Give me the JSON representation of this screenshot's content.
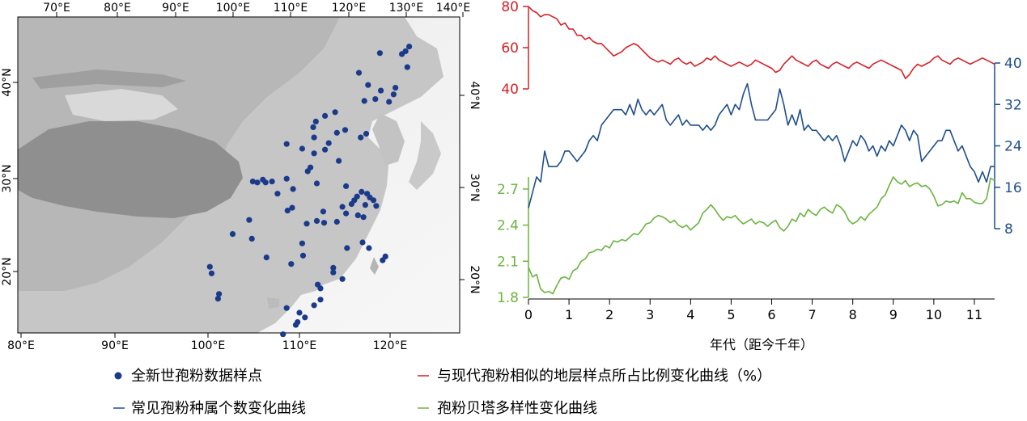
{
  "colors": {
    "red": "#d62027",
    "blue": "#1f4e8c",
    "green": "#6ab43e",
    "dot": "#1b3a8a",
    "frame": "#000000"
  },
  "map": {
    "top_lon_ticks": [
      "70°E",
      "80°E",
      "90°E",
      "100°E",
      "110°E",
      "120°E",
      "130°E",
      "140°E"
    ],
    "bottom_lon_ticks": [
      "80°E",
      "90°E",
      "100°E",
      "110°E",
      "120°E"
    ],
    "left_lat_ticks": [
      "20°N",
      "30°N",
      "40°N"
    ],
    "right_lat_ticks": [
      "20°N",
      "30°N",
      "40°N"
    ],
    "sites": [
      [
        122.0,
        44.0
      ],
      [
        121.6,
        43.5
      ],
      [
        121.2,
        43.2
      ],
      [
        118.8,
        43.3
      ],
      [
        121.8,
        41.8
      ],
      [
        116.5,
        41.2
      ],
      [
        117.5,
        39.9
      ],
      [
        120.5,
        39.6
      ],
      [
        118.9,
        39.3
      ],
      [
        120.3,
        38.9
      ],
      [
        118.3,
        38.4
      ],
      [
        117.1,
        38.2
      ],
      [
        119.8,
        38.1
      ],
      [
        113.9,
        37.0
      ],
      [
        112.8,
        36.6
      ],
      [
        111.8,
        36.0
      ],
      [
        111.5,
        35.4
      ],
      [
        115.0,
        35.1
      ],
      [
        114.1,
        34.8
      ],
      [
        117.3,
        34.7
      ],
      [
        116.7,
        34.3
      ],
      [
        111.6,
        34.3
      ],
      [
        113.2,
        33.7
      ],
      [
        108.6,
        33.6
      ],
      [
        110.3,
        33.1
      ],
      [
        112.8,
        33.0
      ],
      [
        111.6,
        32.6
      ],
      [
        114.3,
        31.8
      ],
      [
        111.2,
        31.1
      ],
      [
        110.9,
        30.7
      ],
      [
        108.6,
        29.9
      ],
      [
        106.0,
        29.8
      ],
      [
        107.0,
        29.6
      ],
      [
        104.9,
        29.6
      ],
      [
        106.3,
        29.5
      ],
      [
        105.4,
        29.5
      ],
      [
        111.9,
        29.4
      ],
      [
        115.1,
        29.1
      ],
      [
        109.3,
        28.8
      ],
      [
        107.6,
        28.3
      ],
      [
        116.8,
        28.5
      ],
      [
        117.4,
        28.3
      ],
      [
        116.3,
        28.0
      ],
      [
        117.7,
        27.9
      ],
      [
        118.1,
        27.6
      ],
      [
        116.0,
        27.6
      ],
      [
        115.7,
        27.2
      ],
      [
        117.2,
        27.1
      ],
      [
        118.4,
        27.0
      ],
      [
        114.7,
        26.9
      ],
      [
        109.2,
        26.8
      ],
      [
        108.7,
        26.5
      ],
      [
        112.6,
        26.4
      ],
      [
        115.1,
        26.2
      ],
      [
        116.4,
        26.0
      ],
      [
        117.0,
        25.8
      ],
      [
        104.5,
        25.5
      ],
      [
        111.9,
        25.4
      ],
      [
        114.1,
        25.3
      ],
      [
        112.7,
        25.2
      ],
      [
        110.8,
        25.1
      ],
      [
        102.7,
        24.0
      ],
      [
        104.8,
        23.5
      ],
      [
        110.3,
        23.0
      ],
      [
        116.9,
        23.1
      ],
      [
        115.2,
        22.5
      ],
      [
        117.6,
        22.5
      ],
      [
        110.4,
        21.7
      ],
      [
        106.4,
        21.5
      ],
      [
        119.4,
        21.6
      ],
      [
        119.1,
        21.2
      ],
      [
        109.1,
        20.8
      ],
      [
        100.2,
        20.5
      ],
      [
        113.7,
        20.4
      ],
      [
        113.7,
        19.9
      ],
      [
        100.4,
        19.8
      ],
      [
        114.7,
        19.2
      ],
      [
        112.0,
        18.6
      ],
      [
        112.3,
        18.2
      ],
      [
        101.2,
        17.6
      ],
      [
        101.1,
        17.1
      ],
      [
        112.3,
        17.0
      ],
      [
        111.6,
        16.4
      ],
      [
        108.6,
        16.1
      ],
      [
        110.0,
        15.6
      ],
      [
        110.6,
        15.1
      ],
      [
        109.8,
        14.6
      ],
      [
        109.6,
        14.3
      ],
      [
        108.2,
        13.3
      ]
    ]
  },
  "legend": {
    "dots_label": "全新世孢粉数据样点",
    "red_label": "与现代孢粉相似的地层样点所占比例变化曲线（%）",
    "blue_label": "常见孢粉种属个数变化曲线",
    "green_label": "孢粉贝塔多样性变化曲线"
  },
  "chart_data": {
    "type": "line",
    "xlabel": "年代（距今千年）",
    "xlim": [
      0,
      11.5
    ],
    "x_ticks": [
      "0",
      "1",
      "2",
      "3",
      "4",
      "5",
      "6",
      "7",
      "8",
      "9",
      "10",
      "11"
    ],
    "series": [
      {
        "name": "与现代孢粉相似的地层样点所占比例变化曲线（%）",
        "axis": "left-top",
        "ylim": [
          40,
          80
        ],
        "y_ticks": [
          "40",
          "60",
          "80"
        ],
        "x": [
          0,
          0.1,
          0.2,
          0.3,
          0.4,
          0.5,
          0.6,
          0.7,
          0.8,
          0.9,
          1.0,
          1.1,
          1.2,
          1.3,
          1.4,
          1.5,
          1.6,
          1.7,
          1.8,
          1.9,
          2.0,
          2.1,
          2.2,
          2.3,
          2.4,
          2.5,
          2.6,
          2.7,
          2.8,
          2.9,
          3.0,
          3.1,
          3.2,
          3.3,
          3.4,
          3.5,
          3.6,
          3.7,
          3.8,
          3.9,
          4.0,
          4.1,
          4.2,
          4.3,
          4.4,
          4.5,
          4.6,
          4.7,
          4.8,
          4.9,
          5.0,
          5.1,
          5.2,
          5.3,
          5.4,
          5.5,
          5.6,
          5.7,
          5.8,
          5.9,
          6.0,
          6.1,
          6.2,
          6.3,
          6.4,
          6.5,
          6.6,
          6.7,
          6.8,
          6.9,
          7.0,
          7.1,
          7.2,
          7.3,
          7.4,
          7.5,
          7.6,
          7.7,
          7.8,
          7.9,
          8.0,
          8.1,
          8.2,
          8.3,
          8.4,
          8.5,
          8.6,
          8.7,
          8.8,
          8.9,
          9.0,
          9.1,
          9.2,
          9.3,
          9.4,
          9.5,
          9.6,
          9.7,
          9.8,
          9.9,
          10.0,
          10.1,
          10.2,
          10.3,
          10.4,
          10.5,
          10.6,
          10.7,
          10.8,
          10.9,
          11.0,
          11.1,
          11.2,
          11.3,
          11.4,
          11.5
        ],
        "values": [
          80,
          78,
          77,
          75,
          76,
          76,
          75,
          74,
          71,
          72,
          69,
          69,
          66,
          66,
          64,
          65,
          63,
          62,
          62,
          60,
          58,
          56,
          57,
          58,
          60,
          61,
          62,
          61,
          59,
          57,
          55,
          54,
          53,
          54,
          53,
          52,
          54,
          55,
          53,
          52,
          53,
          51,
          52,
          53,
          55,
          54,
          56,
          54,
          53,
          52,
          51,
          52,
          53,
          52,
          51,
          52,
          54,
          53,
          52,
          51,
          50,
          48,
          49,
          52,
          54,
          56,
          54,
          53,
          52,
          51,
          53,
          54,
          52,
          51,
          50,
          52,
          53,
          52,
          51,
          50,
          52,
          53,
          52,
          51,
          50,
          52,
          53,
          54,
          53,
          52,
          51,
          50,
          49,
          45,
          47,
          50,
          52,
          51,
          52,
          53,
          55,
          56,
          54,
          53,
          52,
          54,
          55,
          54,
          53,
          52,
          53,
          54,
          55,
          54,
          53,
          52
        ]
      },
      {
        "name": "常见孢粉种属个数变化曲线",
        "axis": "right",
        "ylim": [
          8,
          40
        ],
        "y_ticks": [
          "8",
          "16",
          "24",
          "32",
          "40"
        ],
        "x": [
          0,
          0.1,
          0.2,
          0.3,
          0.4,
          0.5,
          0.6,
          0.7,
          0.8,
          0.9,
          1.0,
          1.1,
          1.2,
          1.3,
          1.4,
          1.5,
          1.6,
          1.7,
          1.8,
          1.9,
          2.0,
          2.1,
          2.2,
          2.3,
          2.4,
          2.5,
          2.6,
          2.7,
          2.8,
          2.9,
          3.0,
          3.1,
          3.2,
          3.3,
          3.4,
          3.5,
          3.6,
          3.7,
          3.8,
          3.9,
          4.0,
          4.1,
          4.2,
          4.3,
          4.4,
          4.5,
          4.6,
          4.7,
          4.8,
          4.9,
          5.0,
          5.1,
          5.2,
          5.3,
          5.4,
          5.5,
          5.6,
          5.7,
          5.8,
          5.9,
          6.0,
          6.1,
          6.2,
          6.3,
          6.4,
          6.5,
          6.6,
          6.7,
          6.8,
          6.9,
          7.0,
          7.1,
          7.2,
          7.3,
          7.4,
          7.5,
          7.6,
          7.7,
          7.8,
          7.9,
          8.0,
          8.1,
          8.2,
          8.3,
          8.4,
          8.5,
          8.6,
          8.7,
          8.8,
          8.9,
          9.0,
          9.1,
          9.2,
          9.3,
          9.4,
          9.5,
          9.6,
          9.7,
          9.8,
          9.9,
          10.0,
          10.1,
          10.2,
          10.3,
          10.4,
          10.5,
          10.6,
          10.7,
          10.8,
          10.9,
          11.0,
          11.1,
          11.2,
          11.3,
          11.4,
          11.5
        ],
        "values": [
          12,
          15,
          18,
          17,
          23,
          20,
          20,
          20,
          21,
          23,
          23,
          22,
          21,
          22,
          23,
          25,
          26,
          25,
          28,
          29,
          30,
          31,
          31,
          31,
          30,
          32,
          30,
          33,
          31,
          30,
          31,
          30,
          31,
          32,
          29,
          28,
          29,
          30,
          28,
          29,
          28,
          28,
          28,
          27,
          28,
          27,
          28,
          30,
          31,
          32,
          30,
          32,
          31,
          34,
          36,
          32,
          29,
          29,
          29,
          29,
          30,
          31,
          35,
          32,
          28,
          30,
          28,
          31,
          27,
          28,
          27,
          27,
          26,
          25,
          26,
          25,
          26,
          24,
          21,
          23,
          25,
          24,
          26,
          25,
          23,
          24,
          22,
          24,
          23,
          25,
          24,
          26,
          28,
          27,
          25,
          27,
          26,
          21,
          22,
          23,
          24,
          25,
          25,
          27,
          27,
          25,
          23,
          24,
          22,
          20,
          19,
          17,
          19,
          17,
          20,
          20
        ]
      },
      {
        "name": "孢粉贝塔多样性变化曲线",
        "axis": "left-bottom",
        "ylim": [
          1.8,
          2.8
        ],
        "y_ticks": [
          "1.8",
          "2.1",
          "2.4",
          "2.7"
        ],
        "x": [
          0,
          0.1,
          0.2,
          0.3,
          0.4,
          0.5,
          0.6,
          0.7,
          0.8,
          0.9,
          1.0,
          1.1,
          1.2,
          1.3,
          1.4,
          1.5,
          1.6,
          1.7,
          1.8,
          1.9,
          2.0,
          2.1,
          2.2,
          2.3,
          2.4,
          2.5,
          2.6,
          2.7,
          2.8,
          2.9,
          3.0,
          3.1,
          3.2,
          3.3,
          3.4,
          3.5,
          3.6,
          3.7,
          3.8,
          3.9,
          4.0,
          4.1,
          4.2,
          4.3,
          4.4,
          4.5,
          4.6,
          4.7,
          4.8,
          4.9,
          5.0,
          5.1,
          5.2,
          5.3,
          5.4,
          5.5,
          5.6,
          5.7,
          5.8,
          5.9,
          6.0,
          6.1,
          6.2,
          6.3,
          6.4,
          6.5,
          6.6,
          6.7,
          6.8,
          6.9,
          7.0,
          7.1,
          7.2,
          7.3,
          7.4,
          7.5,
          7.6,
          7.7,
          7.8,
          7.9,
          8.0,
          8.1,
          8.2,
          8.3,
          8.4,
          8.5,
          8.6,
          8.7,
          8.8,
          8.9,
          9.0,
          9.1,
          9.2,
          9.3,
          9.4,
          9.5,
          9.6,
          9.7,
          9.8,
          9.9,
          10.0,
          10.1,
          10.2,
          10.3,
          10.4,
          10.5,
          10.6,
          10.7,
          10.8,
          10.9,
          11.0,
          11.1,
          11.2,
          11.3,
          11.4,
          11.5
        ],
        "values": [
          2.05,
          1.97,
          1.99,
          1.87,
          1.84,
          1.85,
          1.83,
          1.9,
          1.96,
          1.97,
          1.95,
          2.02,
          2.04,
          2.1,
          2.12,
          2.17,
          2.18,
          2.2,
          2.19,
          2.23,
          2.21,
          2.27,
          2.26,
          2.28,
          2.27,
          2.3,
          2.33,
          2.32,
          2.36,
          2.41,
          2.42,
          2.46,
          2.48,
          2.47,
          2.45,
          2.42,
          2.44,
          2.4,
          2.38,
          2.4,
          2.36,
          2.39,
          2.42,
          2.5,
          2.53,
          2.57,
          2.53,
          2.48,
          2.44,
          2.47,
          2.46,
          2.48,
          2.44,
          2.41,
          2.43,
          2.45,
          2.41,
          2.43,
          2.42,
          2.39,
          2.42,
          2.44,
          2.38,
          2.35,
          2.39,
          2.45,
          2.43,
          2.5,
          2.47,
          2.53,
          2.5,
          2.48,
          2.53,
          2.55,
          2.52,
          2.5,
          2.57,
          2.55,
          2.51,
          2.44,
          2.41,
          2.43,
          2.47,
          2.44,
          2.49,
          2.52,
          2.55,
          2.62,
          2.65,
          2.73,
          2.8,
          2.76,
          2.74,
          2.77,
          2.72,
          2.74,
          2.75,
          2.72,
          2.73,
          2.7,
          2.64,
          2.56,
          2.57,
          2.6,
          2.59,
          2.6,
          2.58,
          2.67,
          2.62,
          2.62,
          2.59,
          2.58,
          2.58,
          2.62,
          2.79,
          2.77
        ]
      }
    ]
  }
}
